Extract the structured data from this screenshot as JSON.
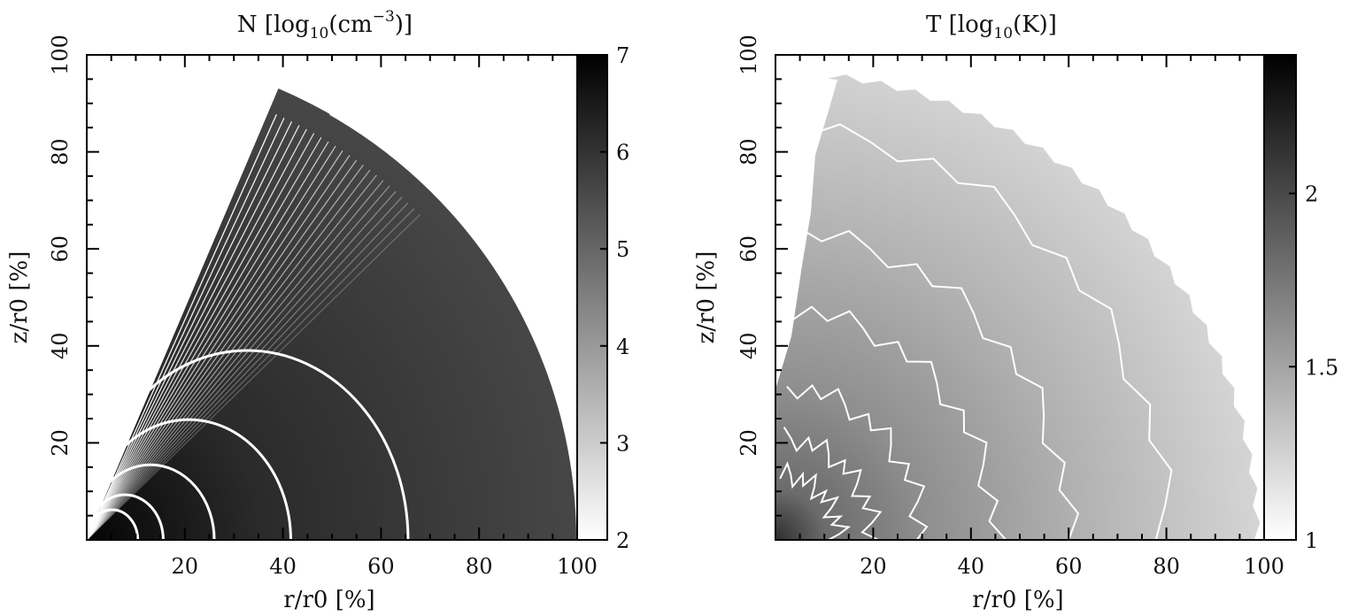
{
  "chart_data": [
    {
      "type": "heatmap",
      "title": "N [log10(cm⁻³)]",
      "title_parts": {
        "pre": "N [log",
        "sub": "10",
        "mid": "(cm",
        "sup": "−3",
        "post": ")]"
      },
      "xlabel": "r/r0 [%]",
      "ylabel": "z/r0 [%]",
      "xlim": [
        0,
        100
      ],
      "ylim": [
        0,
        100
      ],
      "xticks": [
        "20",
        "40",
        "60",
        "80",
        "100"
      ],
      "yticks": [
        "20",
        "40",
        "60",
        "80",
        "100"
      ],
      "colorbar": {
        "range": [
          2,
          7
        ],
        "ticks": [
          "2",
          "3",
          "4",
          "5",
          "6",
          "7"
        ],
        "colormap": "white-to-black"
      },
      "grid": false,
      "contour_radii_percent": [
        10,
        15,
        25,
        40,
        63
      ],
      "wedge": {
        "outer_radius_percent": 100,
        "max_angle_deg": 67
      }
    },
    {
      "type": "heatmap",
      "title": "T [log10(K)]",
      "title_parts": {
        "pre": "T [log",
        "sub": "10",
        "mid": "(K",
        "sup": "",
        "post": ")]"
      },
      "xlabel": "r/r0 [%]",
      "ylabel": "z/r0 [%]",
      "xlim": [
        0,
        100
      ],
      "ylim": [
        0,
        100
      ],
      "xticks": [
        "20",
        "40",
        "60",
        "80",
        "100"
      ],
      "yticks": [
        "20",
        "40",
        "60",
        "80",
        "100"
      ],
      "colorbar": {
        "range": [
          1,
          2.4
        ],
        "ticks": [
          "1",
          "1.5",
          "2"
        ],
        "colormap": "white-to-black"
      },
      "grid": false,
      "contour_radii_percent": [
        13,
        20,
        30,
        45,
        60,
        80
      ]
    }
  ],
  "colors": {
    "background": "#ffffff",
    "axes": "#000000",
    "contours": "#ffffff"
  }
}
